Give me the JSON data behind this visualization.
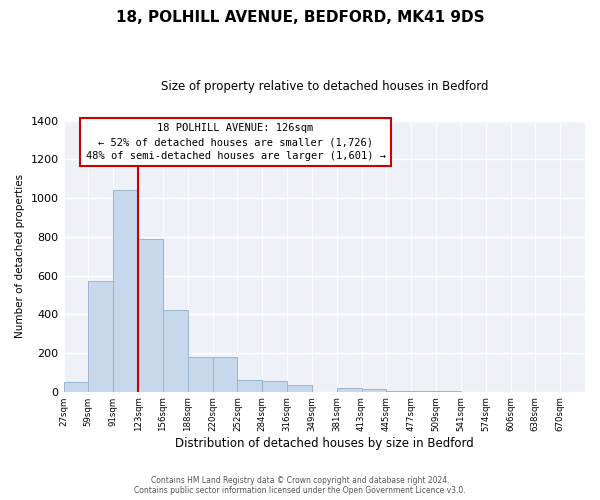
{
  "title_line1": "18, POLHILL AVENUE, BEDFORD, MK41 9DS",
  "title_line2": "Size of property relative to detached houses in Bedford",
  "xlabel": "Distribution of detached houses by size in Bedford",
  "ylabel": "Number of detached properties",
  "bar_color": "#c8d8ec",
  "bar_edge_color": "#9ab5d0",
  "marker_line_color": "#cc0000",
  "bin_labels": [
    "27sqm",
    "59sqm",
    "91sqm",
    "123sqm",
    "156sqm",
    "188sqm",
    "220sqm",
    "252sqm",
    "284sqm",
    "316sqm",
    "349sqm",
    "381sqm",
    "413sqm",
    "445sqm",
    "477sqm",
    "509sqm",
    "541sqm",
    "574sqm",
    "606sqm",
    "638sqm",
    "670sqm"
  ],
  "bar_heights": [
    50,
    570,
    1040,
    790,
    420,
    178,
    178,
    62,
    55,
    35,
    0,
    20,
    13,
    5,
    3,
    2,
    1,
    0,
    0,
    0,
    0
  ],
  "ylim": [
    0,
    1400
  ],
  "yticks": [
    0,
    200,
    400,
    600,
    800,
    1000,
    1200,
    1400
  ],
  "annotation_title": "18 POLHILL AVENUE: 126sqm",
  "annotation_line1": "← 52% of detached houses are smaller (1,726)",
  "annotation_line2": "48% of semi-detached houses are larger (1,601) →",
  "footer_line1": "Contains HM Land Registry data © Crown copyright and database right 2024.",
  "footer_line2": "Contains public sector information licensed under the Open Government Licence v3.0.",
  "background_color": "#ffffff",
  "plot_bg_color": "#eef2f8"
}
